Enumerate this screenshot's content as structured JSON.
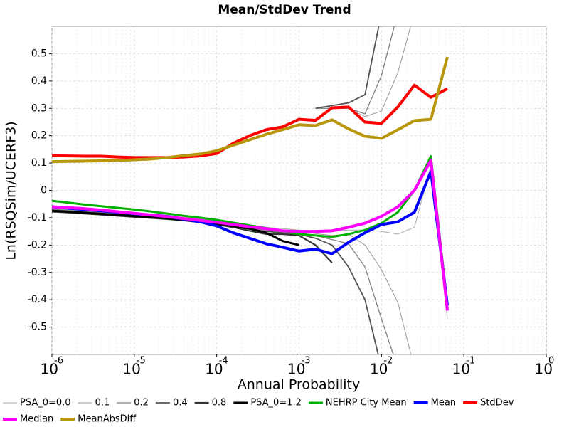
{
  "chart_data": {
    "type": "line",
    "title": "Mean/StdDev Trend",
    "x_label": "Annual Probability",
    "y_label": "Ln(RSQSim/UCERF3)",
    "log_x": true,
    "grid": true,
    "legend": "bottom",
    "xlim": [
      1e-06,
      1
    ],
    "ylim": [
      -0.6,
      0.6
    ],
    "xticks": [
      {
        "value": 1e-06,
        "label": "10",
        "exponent": "-6"
      },
      {
        "value": 1e-05,
        "label": "10",
        "exponent": "-5"
      },
      {
        "value": 0.0001,
        "label": "10",
        "exponent": "-4"
      },
      {
        "value": 0.001,
        "label": "10",
        "exponent": "-3"
      },
      {
        "value": 0.01,
        "label": "10",
        "exponent": "-2"
      },
      {
        "value": 0.1,
        "label": "10",
        "exponent": "-1"
      },
      {
        "value": 1,
        "label": "10",
        "exponent": "0"
      }
    ],
    "yticks": [
      -0.5,
      -0.4,
      -0.3,
      -0.2,
      -0.1,
      0,
      0.1,
      0.2,
      0.3,
      0.4,
      0.5
    ],
    "x": [
      1e-06,
      1.58e-06,
      2.51e-06,
      3.98e-06,
      6.31e-06,
      1e-05,
      1.58e-05,
      2.51e-05,
      3.98e-05,
      6.31e-05,
      0.0001,
      0.000158,
      0.000251,
      0.000398,
      0.000631,
      0.001,
      0.00158,
      0.00251,
      0.00398,
      0.00631,
      0.01,
      0.0158,
      0.0251,
      0.0398,
      0.0631
    ],
    "series": [
      {
        "name": "PSA_0=0.0",
        "color": "#aaaaaa",
        "line_width": 1,
        "values": [
          -0.066,
          -0.07,
          -0.074,
          -0.078,
          -0.082,
          -0.086,
          -0.09,
          -0.094,
          -0.099,
          -0.105,
          -0.112,
          -0.12,
          -0.128,
          -0.135,
          -0.14,
          -0.145,
          -0.148,
          -0.15,
          -0.145,
          -0.145,
          -0.15,
          -0.16,
          -0.135,
          0.09,
          -0.47
        ]
      },
      {
        "name": "0.1",
        "color": "#999999",
        "line_width": 1,
        "values": [
          -0.068,
          -0.072,
          -0.076,
          -0.08,
          -0.084,
          -0.088,
          -0.092,
          -0.096,
          -0.101,
          -0.108,
          -0.115,
          -0.124,
          -0.133,
          -0.14,
          -0.145,
          -0.15,
          -0.158,
          -0.165,
          -0.16,
          -0.2,
          -0.29,
          -0.41,
          -0.65,
          null,
          null
        ],
        "values2": [
          null,
          null,
          null,
          null,
          null,
          null,
          null,
          null,
          null,
          null,
          null,
          null,
          null,
          null,
          null,
          null,
          0.3,
          0.3,
          0.3,
          0.27,
          0.29,
          0.43,
          0.65,
          null,
          null
        ]
      },
      {
        "name": "0.2",
        "color": "#7f7f7f",
        "line_width": 1.3,
        "values": [
          -0.07,
          -0.074,
          -0.078,
          -0.082,
          -0.086,
          -0.09,
          -0.094,
          -0.098,
          -0.103,
          -0.11,
          -0.118,
          -0.127,
          -0.137,
          -0.145,
          -0.15,
          -0.155,
          -0.165,
          -0.18,
          -0.195,
          -0.28,
          -0.47,
          -0.65,
          null,
          null,
          null
        ],
        "values2": [
          null,
          null,
          null,
          null,
          null,
          null,
          null,
          null,
          null,
          null,
          null,
          null,
          null,
          null,
          null,
          null,
          0.3,
          0.3,
          0.3,
          0.28,
          0.42,
          0.65,
          null,
          null,
          null
        ]
      },
      {
        "name": "0.4",
        "color": "#555555",
        "line_width": 1.8,
        "values": [
          -0.072,
          -0.076,
          -0.08,
          -0.084,
          -0.088,
          -0.092,
          -0.096,
          -0.1,
          -0.105,
          -0.112,
          -0.12,
          -0.13,
          -0.14,
          -0.15,
          -0.155,
          -0.16,
          -0.175,
          -0.2,
          -0.28,
          -0.4,
          -0.65,
          null,
          null,
          null,
          null
        ],
        "values2": [
          null,
          null,
          null,
          null,
          null,
          null,
          null,
          null,
          null,
          null,
          null,
          null,
          null,
          null,
          null,
          null,
          0.3,
          0.31,
          0.32,
          0.35,
          0.65,
          null,
          null,
          null,
          null
        ]
      },
      {
        "name": "0.8",
        "color": "#333333",
        "line_width": 2.2,
        "values": [
          -0.078,
          -0.081,
          -0.085,
          -0.089,
          -0.093,
          -0.097,
          -0.101,
          -0.105,
          -0.11,
          -0.117,
          -0.125,
          -0.135,
          -0.148,
          -0.16,
          -0.16,
          -0.165,
          -0.2,
          -0.265,
          null,
          null,
          null,
          null,
          null,
          null,
          null
        ]
      },
      {
        "name": "PSA_0=1.2",
        "color": "#000000",
        "line_width": 3,
        "values": [
          -0.075,
          -0.078,
          -0.082,
          -0.086,
          -0.09,
          -0.094,
          -0.098,
          -0.102,
          -0.108,
          -0.115,
          -0.122,
          -0.13,
          -0.14,
          -0.155,
          -0.185,
          -0.2,
          null,
          null,
          null,
          null,
          null,
          null,
          null,
          null,
          null
        ]
      },
      {
        "name": "NEHRP City Mean",
        "color": "#00b000",
        "line_width": 3,
        "values": [
          -0.038,
          -0.045,
          -0.052,
          -0.058,
          -0.064,
          -0.07,
          -0.077,
          -0.085,
          -0.093,
          -0.1,
          -0.108,
          -0.118,
          -0.128,
          -0.138,
          -0.15,
          -0.16,
          -0.165,
          -0.17,
          -0.16,
          -0.145,
          -0.12,
          -0.08,
          0.0,
          0.125,
          -0.42
        ]
      },
      {
        "name": "Mean",
        "color": "#0000ff",
        "line_width": 4,
        "values": [
          -0.06,
          -0.065,
          -0.07,
          -0.075,
          -0.08,
          -0.085,
          -0.09,
          -0.095,
          -0.105,
          -0.115,
          -0.13,
          -0.155,
          -0.175,
          -0.195,
          -0.208,
          -0.222,
          -0.215,
          -0.232,
          -0.19,
          -0.155,
          -0.125,
          -0.115,
          -0.08,
          0.07,
          -0.42
        ]
      },
      {
        "name": "StdDev",
        "color": "#ff0000",
        "line_width": 4,
        "values": [
          0.127,
          0.126,
          0.125,
          0.125,
          0.122,
          0.12,
          0.12,
          0.12,
          0.122,
          0.126,
          0.135,
          0.172,
          0.2,
          0.222,
          0.232,
          0.26,
          0.256,
          0.302,
          0.305,
          0.25,
          0.245,
          0.305,
          0.385,
          0.34,
          0.372
        ]
      },
      {
        "name": "Median",
        "color": "#ff00ff",
        "line_width": 4,
        "values": [
          -0.06,
          -0.063,
          -0.067,
          -0.072,
          -0.078,
          -0.084,
          -0.09,
          -0.096,
          -0.103,
          -0.11,
          -0.117,
          -0.125,
          -0.133,
          -0.14,
          -0.148,
          -0.15,
          -0.15,
          -0.148,
          -0.135,
          -0.12,
          -0.095,
          -0.06,
          0.0,
          0.11,
          -0.44
        ]
      },
      {
        "name": "MeanAbsDiff",
        "color": "#b8960c",
        "line_width": 4,
        "values": [
          0.105,
          0.106,
          0.107,
          0.108,
          0.11,
          0.112,
          0.115,
          0.12,
          0.127,
          0.133,
          0.145,
          0.165,
          0.185,
          0.205,
          0.222,
          0.24,
          0.237,
          0.258,
          0.225,
          0.198,
          0.19,
          0.222,
          0.255,
          0.26,
          0.488
        ]
      }
    ]
  }
}
